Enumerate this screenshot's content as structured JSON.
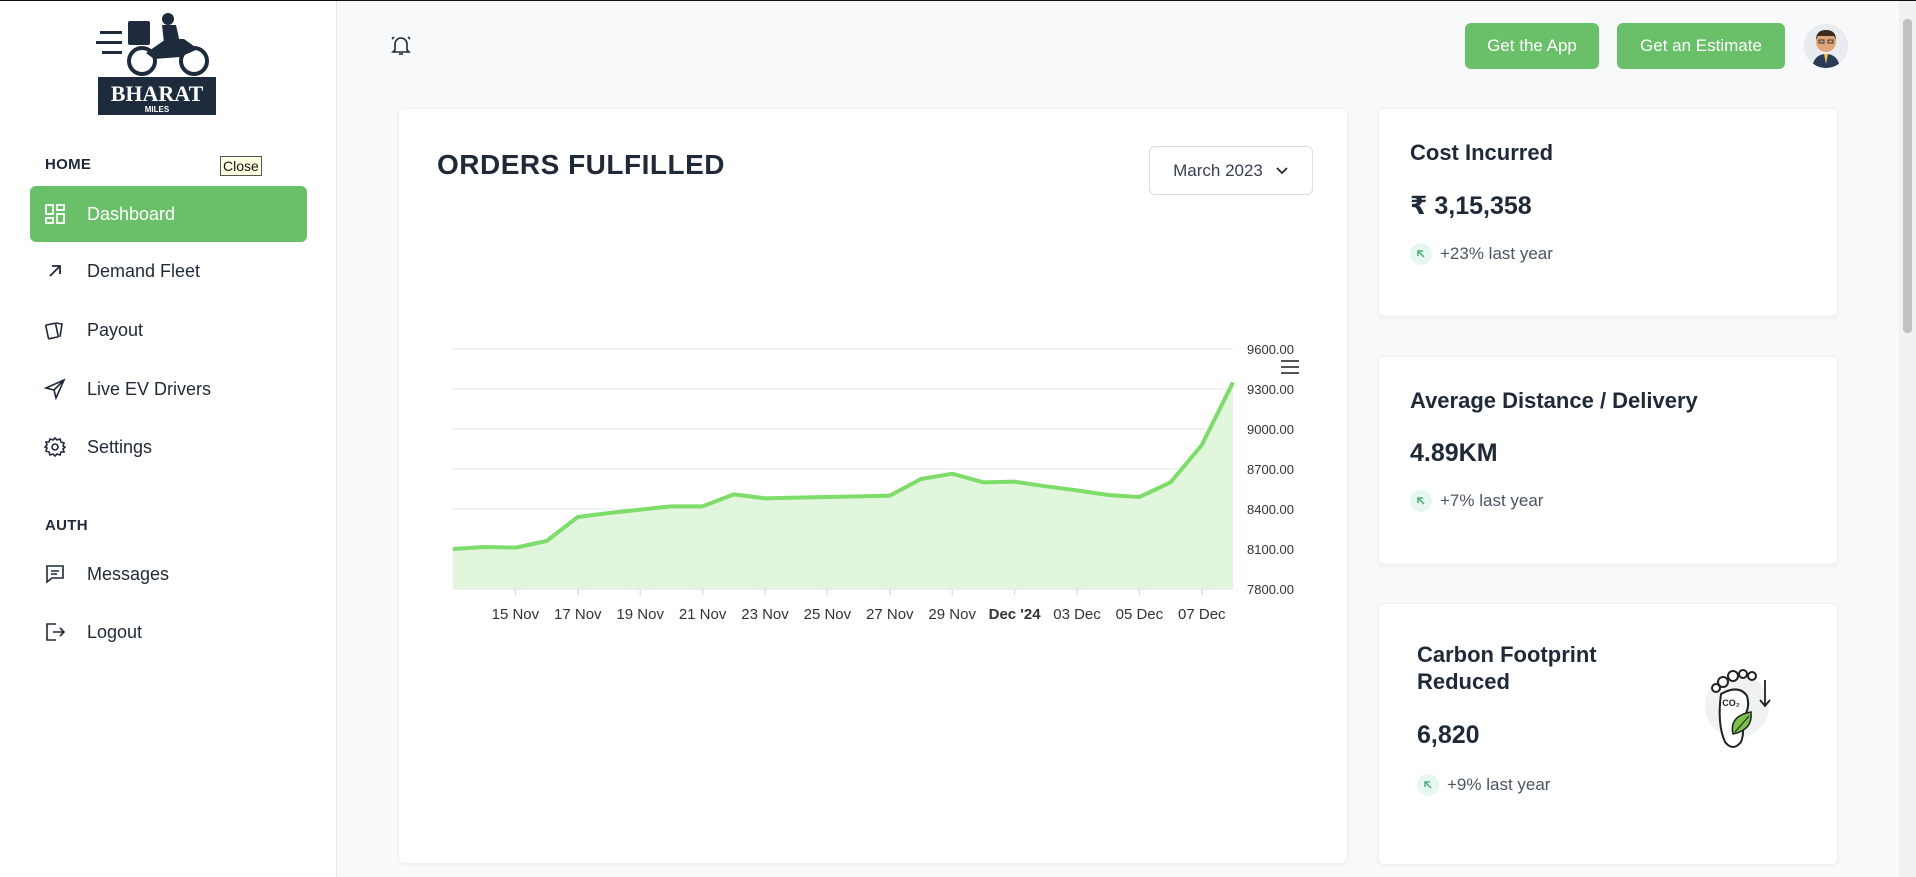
{
  "brand": {
    "name": "BHARAT",
    "sub": "MILES"
  },
  "sidebar": {
    "sections": [
      {
        "title": "HOME",
        "items": [
          {
            "label": "Dashboard",
            "icon": "dashboard-icon"
          },
          {
            "label": "Demand Fleet",
            "icon": "arrow-up-right-icon"
          },
          {
            "label": "Payout",
            "icon": "cards-icon"
          },
          {
            "label": "Live EV Drivers",
            "icon": "send-icon"
          },
          {
            "label": "Settings",
            "icon": "gear-icon"
          }
        ]
      },
      {
        "title": "AUTH",
        "items": [
          {
            "label": "Messages",
            "icon": "message-icon"
          },
          {
            "label": "Logout",
            "icon": "logout-icon"
          }
        ]
      }
    ],
    "tooltip": "Close"
  },
  "header": {
    "get_app_label": "Get the App",
    "get_estimate_label": "Get an Estimate"
  },
  "orders_card": {
    "title": "ORDERS FULFILLED",
    "month": "March 2023"
  },
  "stats": [
    {
      "title": "Cost Incurred",
      "value": "₹ 3,15,358",
      "delta": "+23% last year"
    },
    {
      "title": "Average Distance / Delivery",
      "value": "4.89KM",
      "delta": "+7% last year"
    },
    {
      "title": "Carbon Footprint Reduced",
      "value": "6,820",
      "delta": "+9% last year",
      "co2_label": "CO₂"
    }
  ],
  "colors": {
    "accent": "#6abf69",
    "line": "#7ddc6a",
    "fill": "#dcf5d6"
  },
  "chart_data": {
    "type": "area",
    "title": "ORDERS FULFILLED",
    "x_tick_labels": [
      "15 Nov",
      "17 Nov",
      "19 Nov",
      "21 Nov",
      "23 Nov",
      "25 Nov",
      "27 Nov",
      "29 Nov",
      "Dec '24",
      "03 Dec",
      "05 Dec",
      "07 Dec"
    ],
    "y_tick_labels": [
      "9600.00",
      "9300.00",
      "9000.00",
      "8700.00",
      "8400.00",
      "8100.00",
      "7800.00"
    ],
    "ylim": [
      7800,
      9600
    ],
    "x": [
      "13 Nov",
      "14 Nov",
      "15 Nov",
      "16 Nov",
      "17 Nov",
      "18 Nov",
      "19 Nov",
      "20 Nov",
      "21 Nov",
      "22 Nov",
      "23 Nov",
      "24 Nov",
      "25 Nov",
      "26 Nov",
      "27 Nov",
      "28 Nov",
      "29 Nov",
      "30 Nov",
      "01 Dec",
      "02 Dec",
      "03 Dec",
      "04 Dec",
      "05 Dec",
      "06 Dec",
      "07 Dec",
      "08 Dec"
    ],
    "values": [
      8100,
      8115,
      8110,
      8160,
      8340,
      8370,
      8395,
      8420,
      8420,
      8510,
      8480,
      8485,
      8490,
      8495,
      8500,
      8625,
      8665,
      8600,
      8605,
      8570,
      8540,
      8505,
      8490,
      8600,
      8880,
      9350
    ]
  }
}
